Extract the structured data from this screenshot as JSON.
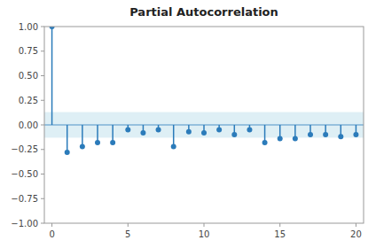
{
  "chart_data": {
    "type": "stem",
    "title": "Partial Autocorrelation",
    "x": [
      0,
      1,
      2,
      3,
      4,
      5,
      6,
      7,
      8,
      9,
      10,
      11,
      12,
      13,
      14,
      15,
      16,
      17,
      18,
      19,
      20
    ],
    "values": [
      1.0,
      -0.28,
      -0.22,
      -0.18,
      -0.18,
      -0.05,
      -0.08,
      -0.05,
      -0.22,
      -0.07,
      -0.08,
      -0.05,
      -0.1,
      -0.05,
      -0.18,
      -0.14,
      -0.14,
      -0.1,
      -0.1,
      -0.12,
      -0.1
    ],
    "color": "#2b7bba",
    "conf_band": {
      "value": 0.13,
      "color": "#add8e6"
    },
    "xlim": [
      -0.5,
      20.5
    ],
    "ylim": [
      -1.0,
      1.0
    ],
    "xticks": [
      0,
      5,
      10,
      15,
      20
    ],
    "yticks": [
      {
        "value": -1.0,
        "label": "−1.00"
      },
      {
        "value": -0.75,
        "label": "−0.75"
      },
      {
        "value": -0.5,
        "label": "−0.50"
      },
      {
        "value": -0.25,
        "label": "−0.25"
      },
      {
        "value": 0.0,
        "label": "0.00"
      },
      0.25,
      {
        "value": 0.5,
        "label": "0.50"
      },
      0.75,
      {
        "value": 1.0,
        "label": "1.00"
      }
    ],
    "grid": false
  }
}
